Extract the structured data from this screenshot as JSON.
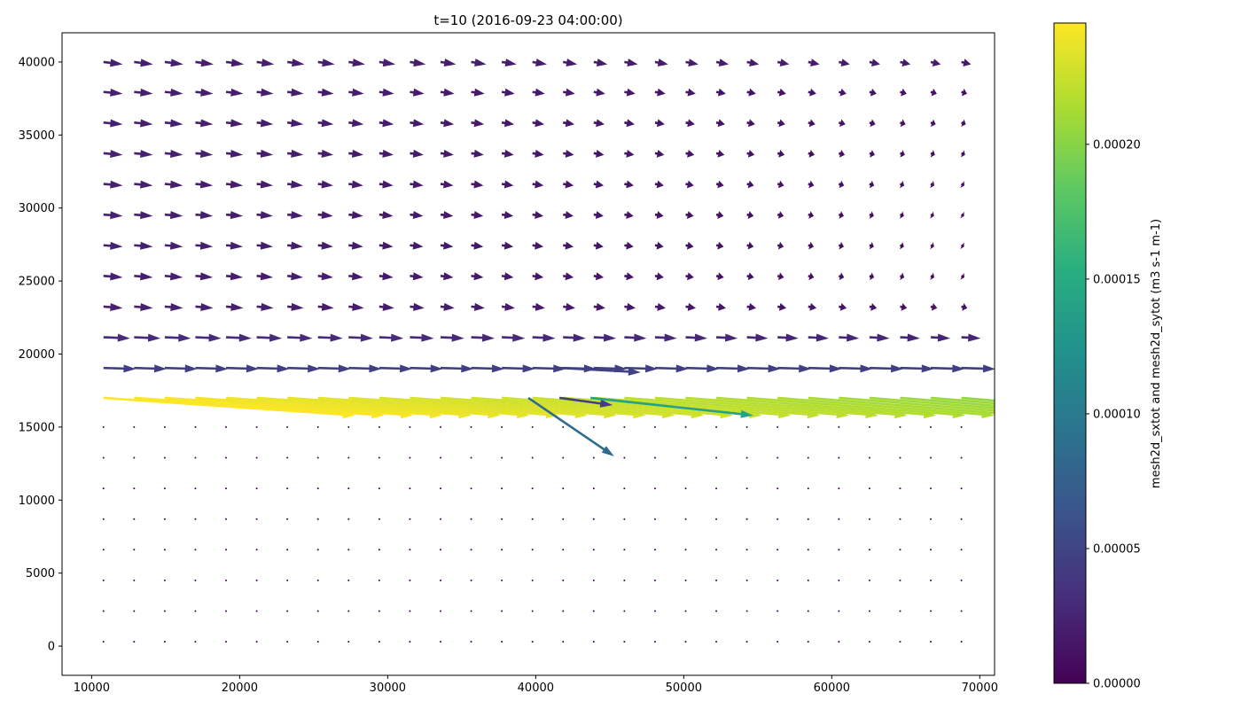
{
  "chart_data": {
    "type": "quiver",
    "title": "t=10 (2016-09-23 04:00:00)",
    "xlabel": "",
    "ylabel": "",
    "xlim": [
      8000,
      71000
    ],
    "ylim": [
      -2000,
      42000
    ],
    "x_ticks": [
      10000,
      20000,
      30000,
      40000,
      50000,
      60000,
      70000
    ],
    "y_ticks": [
      0,
      5000,
      10000,
      15000,
      20000,
      25000,
      30000,
      35000,
      40000
    ],
    "x_tick_labels": [
      "10000",
      "20000",
      "30000",
      "40000",
      "50000",
      "60000",
      "70000"
    ],
    "y_tick_labels": [
      "0",
      "5000",
      "10000",
      "15000",
      "20000",
      "25000",
      "30000",
      "35000",
      "40000"
    ],
    "grid": false,
    "colormap": "viridis",
    "colorbar": {
      "label": "mesh2d_sxtot and mesh2d_sytot (m3 s-1 m-1)",
      "min": 0.0,
      "max": 0.000245,
      "ticks": [
        0.0,
        5e-05,
        0.0001,
        0.00015,
        0.0002
      ],
      "tick_labels": [
        "0.00000",
        "0.00005",
        "0.00010",
        "0.00015",
        "0.00020"
      ]
    },
    "grid_points": {
      "x_start": 10800,
      "x_step": 2070,
      "x_count": 29,
      "y_values": [
        300,
        2400,
        4500,
        6600,
        8700,
        10800,
        12900,
        15000,
        17000,
        19050,
        21150,
        23250,
        25350,
        27450,
        29550,
        31650,
        33750,
        35850,
        37950,
        40000
      ]
    },
    "rows": [
      {
        "y": 40000,
        "u_start": 1300,
        "u_end": 650,
        "v": -160,
        "mag_start": 2.2e-05,
        "mag_end": 1.8e-05
      },
      {
        "y": 37950,
        "u_start": 1300,
        "u_end": 380,
        "v": -120,
        "mag_start": 2.2e-05,
        "mag_end": 1.2e-05
      },
      {
        "y": 35850,
        "u_start": 1300,
        "u_end": 300,
        "v": -120,
        "mag_start": 2.2e-05,
        "mag_end": 1e-05
      },
      {
        "y": 33750,
        "u_start": 1300,
        "u_end": 250,
        "v": -110,
        "mag_start": 2.2e-05,
        "mag_end": 9e-06
      },
      {
        "y": 31650,
        "u_start": 1300,
        "u_end": 200,
        "v": -110,
        "mag_start": 2.2e-05,
        "mag_end": 8e-06
      },
      {
        "y": 29550,
        "u_start": 1300,
        "u_end": 180,
        "v": -100,
        "mag_start": 2.2e-05,
        "mag_end": 7e-06
      },
      {
        "y": 27450,
        "u_start": 1300,
        "u_end": 180,
        "v": -100,
        "mag_start": 2.2e-05,
        "mag_end": 7e-06
      },
      {
        "y": 25350,
        "u_start": 1300,
        "u_end": 200,
        "v": -100,
        "mag_start": 2.2e-05,
        "mag_end": 8e-06
      },
      {
        "y": 23250,
        "u_start": 1300,
        "u_end": 400,
        "v": -100,
        "mag_start": 2.3e-05,
        "mag_end": 1.2e-05
      },
      {
        "y": 21150,
        "u_start": 1800,
        "u_end": 1300,
        "v": -70,
        "mag_start": 3e-05,
        "mag_end": 2.5e-05
      },
      {
        "y": 19050,
        "u_start": 2200,
        "u_end": 2300,
        "v": -70,
        "mag_start": 4.5e-05,
        "mag_end": 4.5e-05
      },
      {
        "y": 17000,
        "u_start": 17000,
        "u_end": 14000,
        "v": -1200,
        "mag_start": 0.000245,
        "mag_end": 0.000205
      }
    ],
    "bottom_rows_magnitude": 0.0,
    "special_vectors": [
      {
        "x": 39500,
        "y": 17000,
        "u": 5800,
        "v": -4000,
        "mag": 8.5e-05
      },
      {
        "x": 41600,
        "y": 17000,
        "u": 3600,
        "v": -500,
        "mag": 4.5e-05
      },
      {
        "x": 43700,
        "y": 17000,
        "u": 11000,
        "v": -1200,
        "mag": 0.00014
      },
      {
        "x": 41600,
        "y": 19050,
        "u": 5500,
        "v": -300,
        "mag": 4.8e-05
      }
    ]
  }
}
